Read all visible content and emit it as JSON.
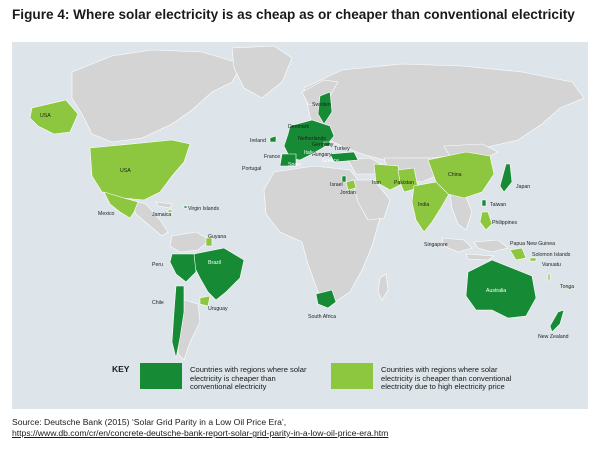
{
  "title": "Figure 4: Where solar electricity is as cheap as or cheaper than conventional electricity",
  "colors": {
    "dark_green": "#168a34",
    "light_green": "#8dc63f",
    "land_grey": "#d4d4d4",
    "ocean": "#dde5ea"
  },
  "labels": {
    "usa_alaska": "USA",
    "usa": "USA",
    "mexico": "Mexico",
    "virgin_islands": "Virgin Islands",
    "jamaica": "Jamaica",
    "guyana": "Guyana",
    "peru": "Peru",
    "brazil": "Brazil",
    "chile": "Chile",
    "uruguay": "Uruguay",
    "ireland": "Ireland",
    "denmark": "Denmark",
    "sweden": "Sweden",
    "netherlands": "Netherlands",
    "germany": "Germany",
    "hungary": "Hungary",
    "france": "France",
    "portugal": "Portugal",
    "spain": "Spain",
    "italy": "Italy",
    "greece": "Greece",
    "turkey": "Turkey",
    "israel": "Israel",
    "jordan": "Jordan",
    "iran": "Iran",
    "pakistan": "Pakistan",
    "india": "India",
    "china": "China",
    "japan": "Japan",
    "taiwan": "Taiwan",
    "philippines": "Philippines",
    "singapore": "Singapore",
    "papua_new_guinea": "Papua New Guinea",
    "solomon_islands": "Solomon Islands",
    "vanuatu": "Vanuatu",
    "tonga": "Tonga",
    "australia": "Australia",
    "new_zealand": "New Zealand",
    "south_africa": "South Africa"
  },
  "key": {
    "heading": "KEY",
    "item1": "Countries with regions where solar electricity is cheaper than conventional electricity",
    "item2": "Countries with regions where solar electricity is cheaper than conventional electricity due to high electricity price"
  },
  "source": {
    "line1": "Source: Deutsche Bank (2015) ‘Solar Grid Parity in a Low Oil Price Era’,",
    "url": "https://www.db.com/cr/en/concrete-deutsche-bank-report-solar-grid-parity-in-a-low-oil-price-era.htm"
  }
}
